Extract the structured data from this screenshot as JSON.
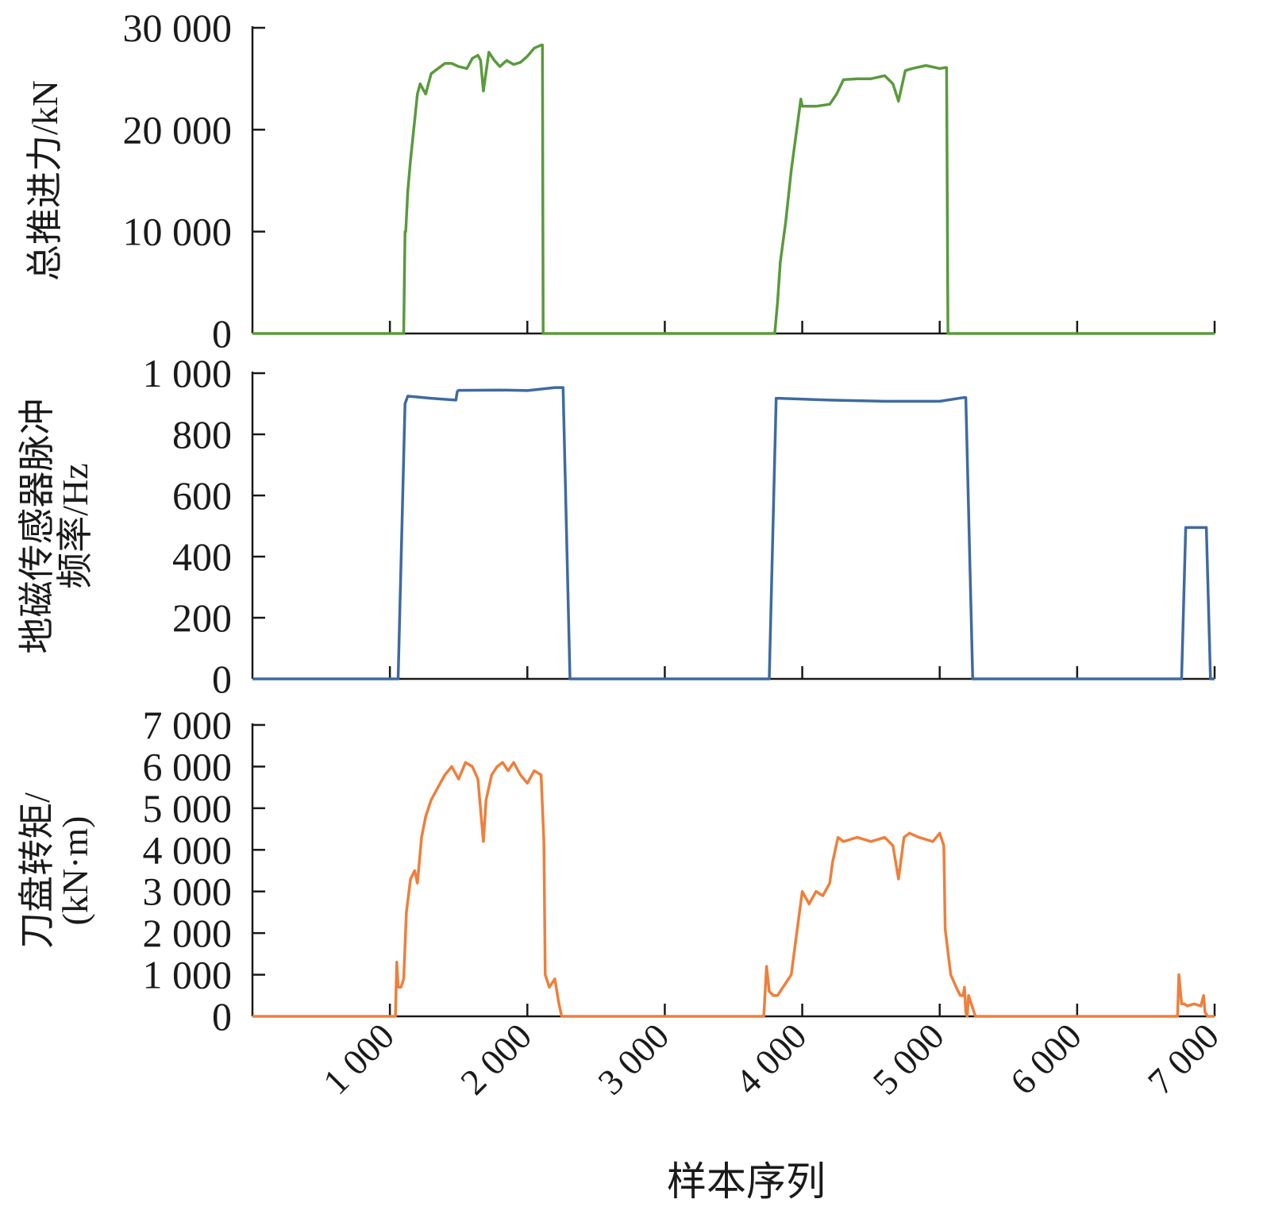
{
  "chart_data": [
    {
      "type": "line",
      "ylabel": "总推进力/kN",
      "ylim": [
        0,
        30000
      ],
      "yticks": [
        0,
        10000,
        20000,
        30000
      ],
      "ytick_labels": [
        "0",
        "10 000",
        "20 000",
        "30 000"
      ],
      "xlim": [
        0,
        7000
      ],
      "color": "#5a9a3c",
      "series": [
        {
          "x": [
            0,
            1000,
            1100,
            1110,
            1115,
            1130,
            1150,
            1200,
            1220,
            1260,
            1300,
            1350,
            1400,
            1450,
            1500,
            1560,
            1600,
            1640,
            1660,
            1680,
            1720,
            1760,
            1800,
            1850,
            1900,
            1950,
            2000,
            2050,
            2100,
            2110,
            2115,
            2300,
            3000,
            3700,
            3800,
            3820,
            3840,
            3880,
            3920,
            3960,
            3990,
            4000,
            4100,
            4200,
            4250,
            4300,
            4400,
            4500,
            4600,
            4660,
            4700,
            4750,
            4800,
            4900,
            5000,
            5040,
            5050,
            5060,
            6000,
            7000
          ],
          "y": [
            0,
            0,
            0,
            10000,
            10000,
            14000,
            17000,
            23500,
            24500,
            23500,
            25500,
            26000,
            26500,
            26500,
            26200,
            26000,
            27000,
            27300,
            26800,
            23800,
            27600,
            26800,
            26200,
            26800,
            26400,
            26600,
            27200,
            28000,
            28300,
            28300,
            0,
            0,
            0,
            0,
            0,
            3000,
            7000,
            11000,
            16000,
            20000,
            23000,
            22300,
            22300,
            22500,
            23500,
            24900,
            25000,
            25000,
            25300,
            24500,
            22800,
            25800,
            26000,
            26300,
            26000,
            26100,
            26100,
            0,
            0,
            0
          ]
        }
      ]
    },
    {
      "type": "line",
      "ylabel": [
        "地磁传感器脉冲",
        "频率/Hz"
      ],
      "ylim": [
        0,
        1000
      ],
      "yticks": [
        0,
        200,
        400,
        600,
        800,
        1000
      ],
      "ytick_labels": [
        "0",
        "200",
        "400",
        "600",
        "800",
        "1 000"
      ],
      "xlim": [
        0,
        7000
      ],
      "color": "#3f6aa1",
      "series": [
        {
          "x": [
            0,
            1060,
            1110,
            1130,
            1300,
            1480,
            1490,
            1500,
            1800,
            2000,
            2200,
            2260,
            2310,
            3000,
            3700,
            3760,
            3810,
            3830,
            4200,
            4600,
            5000,
            5170,
            5190,
            5240,
            6000,
            6760,
            6790,
            6810,
            6940,
            6970,
            7000
          ],
          "y": [
            0,
            0,
            900,
            925,
            918,
            912,
            940,
            944,
            945,
            943,
            953,
            953,
            0,
            0,
            0,
            0,
            918,
            918,
            912,
            908,
            908,
            920,
            920,
            0,
            0,
            0,
            495,
            495,
            495,
            0,
            0
          ]
        }
      ]
    },
    {
      "type": "line",
      "ylabel": [
        "刀盘转矩/",
        "(kN·m)"
      ],
      "ylim": [
        0,
        7000
      ],
      "yticks": [
        0,
        1000,
        2000,
        3000,
        4000,
        5000,
        6000,
        7000
      ],
      "ytick_labels": [
        "0",
        "1 000",
        "2 000",
        "3 000",
        "4 000",
        "5 000",
        "6 000",
        "7 000"
      ],
      "xlim": [
        0,
        7000
      ],
      "xticks": [
        1000,
        2000,
        3000,
        4000,
        5000,
        6000,
        7000
      ],
      "xtick_labels": [
        "1 000",
        "2 000",
        "3 000",
        "4 000",
        "5 000",
        "6 000",
        "7 000"
      ],
      "xlabel": "样本序列",
      "color": "#ee7f3c",
      "series": [
        {
          "x": [
            0,
            1040,
            1050,
            1060,
            1080,
            1100,
            1120,
            1150,
            1180,
            1200,
            1230,
            1260,
            1300,
            1350,
            1400,
            1450,
            1500,
            1550,
            1600,
            1640,
            1680,
            1700,
            1740,
            1780,
            1820,
            1860,
            1900,
            1950,
            2000,
            2050,
            2100,
            2120,
            2130,
            2160,
            2200,
            2230,
            2250,
            2300,
            3000,
            3720,
            3740,
            3760,
            3790,
            3820,
            3860,
            3920,
            3960,
            4000,
            4050,
            4100,
            4150,
            4200,
            4220,
            4260,
            4300,
            4400,
            4500,
            4600,
            4660,
            4700,
            4740,
            4780,
            4850,
            4950,
            5000,
            5030,
            5040,
            5080,
            5120,
            5150,
            5170,
            5180,
            5190,
            5200,
            5210,
            5260,
            6000,
            6730,
            6740,
            6760,
            6780,
            6800,
            6850,
            6900,
            6920,
            6930,
            6950,
            7000
          ],
          "y": [
            0,
            0,
            1300,
            700,
            700,
            900,
            2500,
            3300,
            3500,
            3200,
            4300,
            4800,
            5200,
            5500,
            5800,
            6000,
            5700,
            6100,
            6000,
            5700,
            4200,
            5200,
            5800,
            6000,
            6100,
            5900,
            6100,
            5800,
            5600,
            5900,
            5800,
            4200,
            1000,
            700,
            900,
            300,
            0,
            0,
            0,
            0,
            1200,
            600,
            500,
            500,
            700,
            1000,
            2000,
            3000,
            2700,
            3000,
            2900,
            3200,
            3700,
            4300,
            4200,
            4300,
            4200,
            4300,
            4100,
            3300,
            4300,
            4400,
            4300,
            4200,
            4400,
            4100,
            2100,
            1000,
            700,
            500,
            500,
            700,
            100,
            0,
            500,
            0,
            0,
            0,
            1000,
            300,
            300,
            250,
            300,
            250,
            500,
            100,
            0,
            0
          ]
        }
      ]
    }
  ]
}
